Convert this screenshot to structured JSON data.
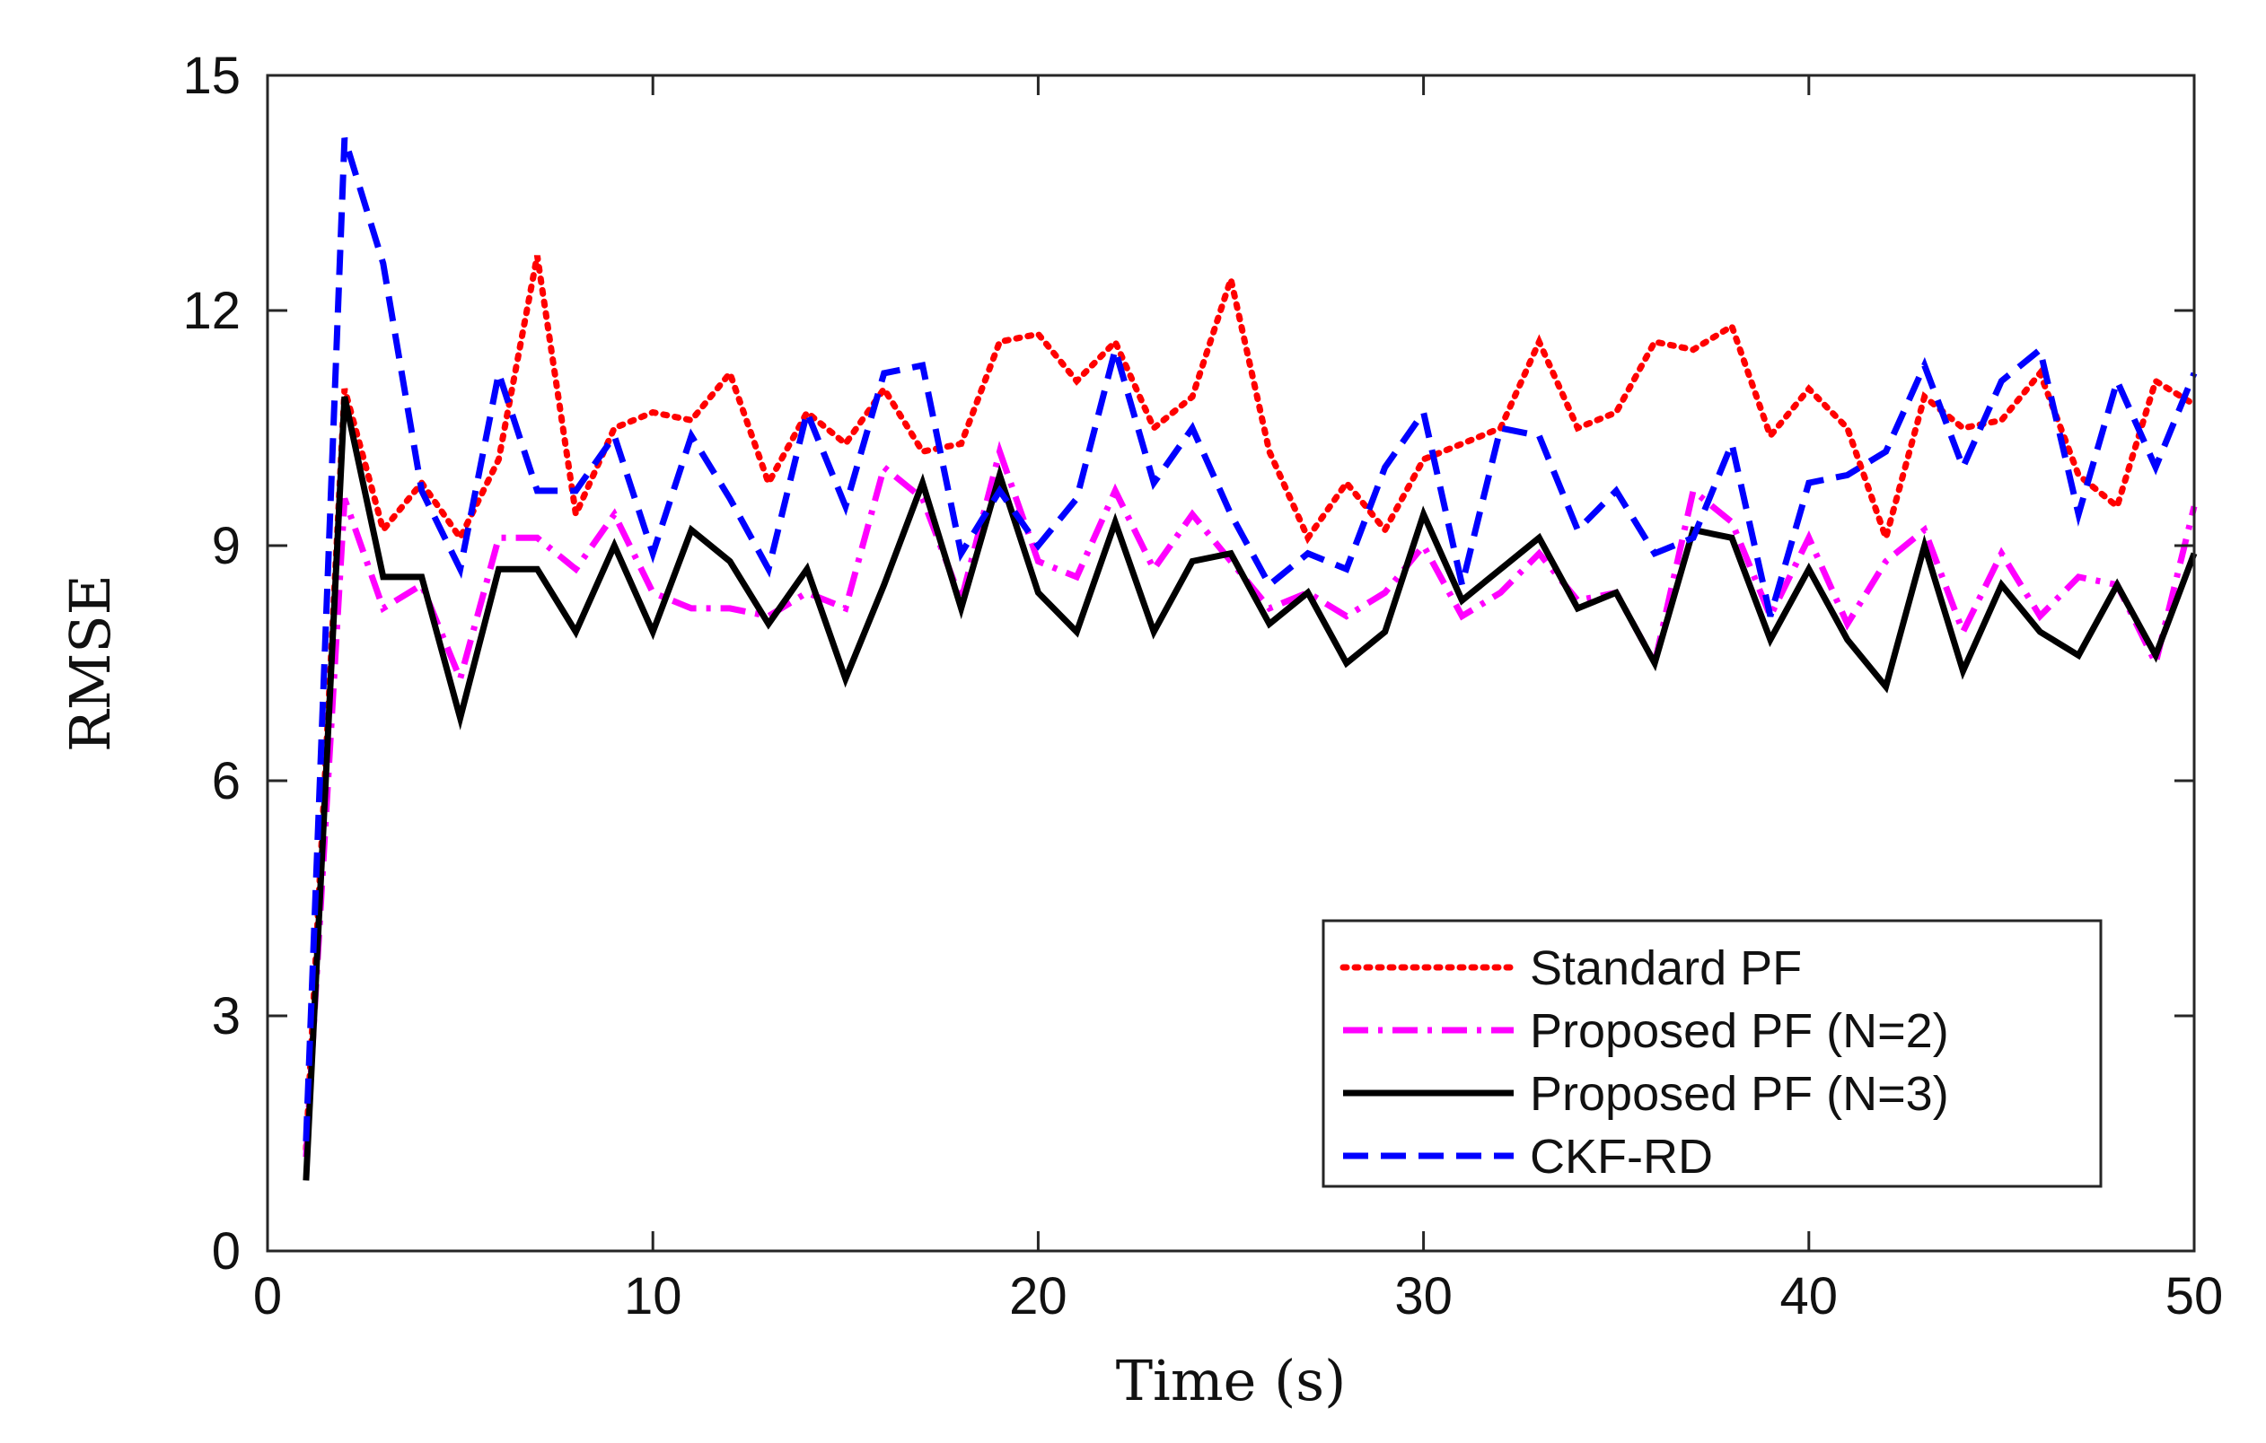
{
  "chart_data": {
    "type": "line",
    "title": "",
    "xlabel": "Time (s)",
    "ylabel": "RMSE",
    "xlim": [
      0,
      50
    ],
    "ylim": [
      0,
      15
    ],
    "xticks": [
      0,
      10,
      20,
      30,
      40,
      50
    ],
    "yticks": [
      0,
      3,
      6,
      9,
      12,
      15
    ],
    "legend_position": "bottom-right",
    "x": [
      1,
      2,
      3,
      4,
      5,
      6,
      7,
      8,
      9,
      10,
      11,
      12,
      13,
      14,
      15,
      16,
      17,
      18,
      19,
      20,
      21,
      22,
      23,
      24,
      25,
      26,
      27,
      28,
      29,
      30,
      31,
      32,
      33,
      34,
      35,
      36,
      37,
      38,
      39,
      40,
      41,
      42,
      43,
      44,
      45,
      46,
      47,
      48,
      49,
      50
    ],
    "series": [
      {
        "name": "Standard PF",
        "color": "#ff0000",
        "style": "dotted",
        "values": [
          1.3,
          11.0,
          9.2,
          9.8,
          9.1,
          10.1,
          12.7,
          9.4,
          10.5,
          10.7,
          10.6,
          11.2,
          9.8,
          10.7,
          10.3,
          11.0,
          10.2,
          10.3,
          11.6,
          11.7,
          11.1,
          11.6,
          10.5,
          10.9,
          12.4,
          10.2,
          9.1,
          9.8,
          9.2,
          10.1,
          10.3,
          10.5,
          11.6,
          10.5,
          10.7,
          11.6,
          11.5,
          11.8,
          10.4,
          11.0,
          10.5,
          9.1,
          10.9,
          10.5,
          10.6,
          11.2,
          9.9,
          9.5,
          11.1,
          10.8
        ]
      },
      {
        "name": "Proposed PF (N=2)",
        "color": "#ff00ff",
        "style": "dashdot",
        "values": [
          1.2,
          9.6,
          8.2,
          8.5,
          7.3,
          9.1,
          9.1,
          8.7,
          9.4,
          8.4,
          8.2,
          8.2,
          8.1,
          8.4,
          8.2,
          10.0,
          9.6,
          8.3,
          10.2,
          8.8,
          8.6,
          9.7,
          8.7,
          9.4,
          8.8,
          8.2,
          8.4,
          8.1,
          8.4,
          9.0,
          8.1,
          8.4,
          8.9,
          8.3,
          8.4,
          7.5,
          9.7,
          9.3,
          8.1,
          9.1,
          8.0,
          8.8,
          9.2,
          7.9,
          8.9,
          8.1,
          8.6,
          8.5,
          7.5,
          9.5
        ]
      },
      {
        "name": "Proposed PF (N=3)",
        "color": "#000000",
        "style": "solid",
        "values": [
          0.9,
          10.9,
          8.6,
          8.6,
          6.8,
          8.7,
          8.7,
          7.9,
          9.0,
          7.9,
          9.2,
          8.8,
          8.0,
          8.7,
          7.3,
          8.5,
          9.8,
          8.2,
          9.9,
          8.4,
          7.9,
          9.3,
          7.9,
          8.8,
          8.9,
          8.0,
          8.4,
          7.5,
          7.9,
          9.4,
          8.3,
          8.7,
          9.1,
          8.2,
          8.4,
          7.5,
          9.2,
          9.1,
          7.8,
          8.7,
          7.8,
          7.2,
          9.0,
          7.4,
          8.5,
          7.9,
          7.6,
          8.5,
          7.6,
          8.9
        ]
      },
      {
        "name": "CKF-RD",
        "color": "#0000ff",
        "style": "dashed",
        "values": [
          1.4,
          14.2,
          12.6,
          9.7,
          8.7,
          11.2,
          9.7,
          9.7,
          10.4,
          8.9,
          10.4,
          9.6,
          8.7,
          10.7,
          9.5,
          11.2,
          11.3,
          8.9,
          9.7,
          9.0,
          9.6,
          11.5,
          9.8,
          10.5,
          9.4,
          8.5,
          8.9,
          8.7,
          10.0,
          10.7,
          8.5,
          10.5,
          10.4,
          9.2,
          9.7,
          8.9,
          9.1,
          10.3,
          8.1,
          9.8,
          9.9,
          10.2,
          11.3,
          10.0,
          11.1,
          11.5,
          9.4,
          11.1,
          10.0,
          11.2
        ]
      }
    ]
  }
}
